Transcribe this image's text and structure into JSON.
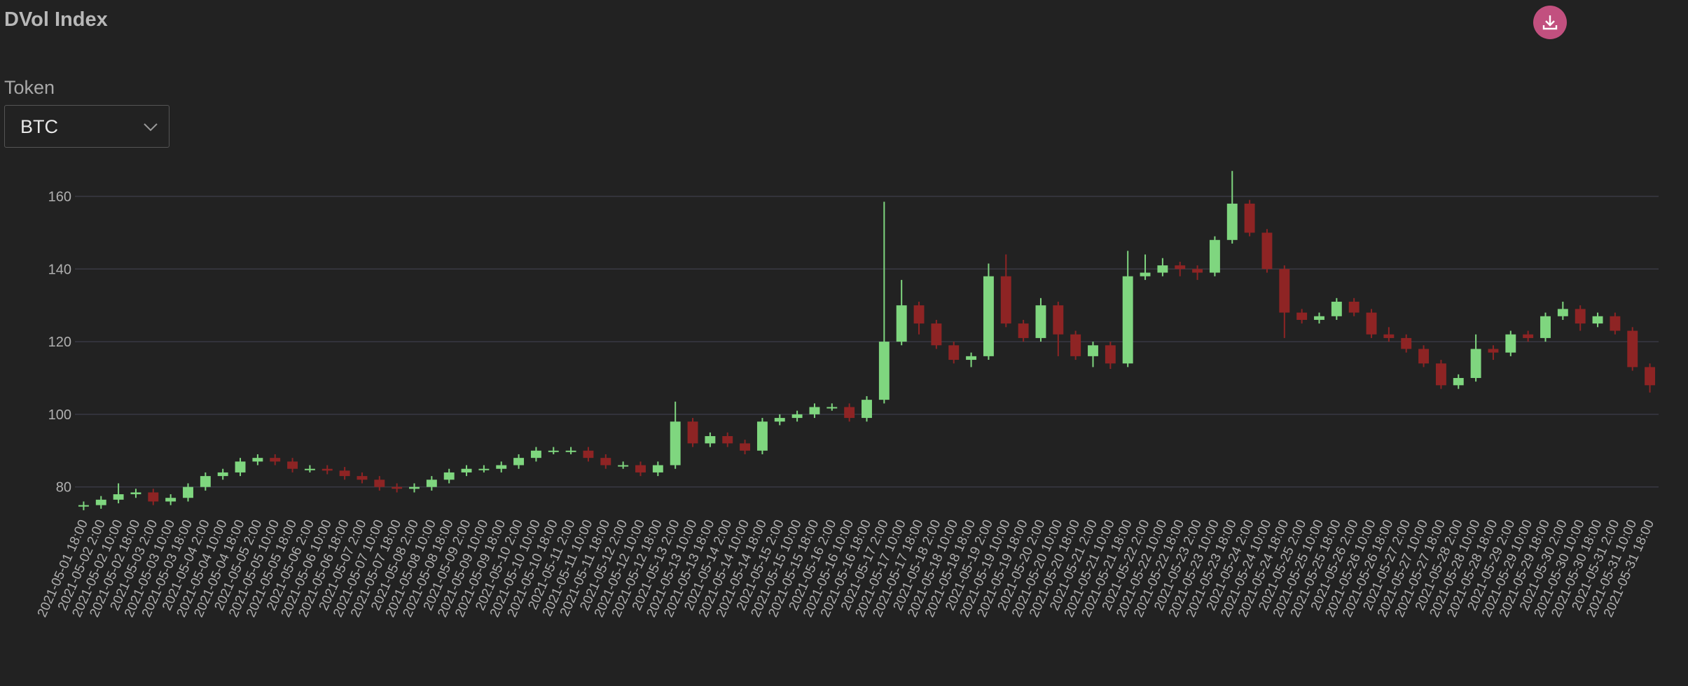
{
  "chart_data": {
    "type": "candlestick",
    "title": "DVol Index",
    "categories": [
      "2021-05-01 18:00",
      "2021-05-02 2:00",
      "2021-05-02 10:00",
      "2021-05-02 18:00",
      "2021-05-03 2:00",
      "2021-05-03 10:00",
      "2021-05-03 18:00",
      "2021-05-04 2:00",
      "2021-05-04 10:00",
      "2021-05-04 18:00",
      "2021-05-05 2:00",
      "2021-05-05 10:00",
      "2021-05-05 18:00",
      "2021-05-06 2:00",
      "2021-05-06 10:00",
      "2021-05-06 18:00",
      "2021-05-07 2:00",
      "2021-05-07 10:00",
      "2021-05-07 18:00",
      "2021-05-08 2:00",
      "2021-05-08 10:00",
      "2021-05-08 18:00",
      "2021-05-09 2:00",
      "2021-05-09 10:00",
      "2021-05-09 18:00",
      "2021-05-10 2:00",
      "2021-05-10 10:00",
      "2021-05-10 18:00",
      "2021-05-11 2:00",
      "2021-05-11 10:00",
      "2021-05-11 18:00",
      "2021-05-12 2:00",
      "2021-05-12 10:00",
      "2021-05-12 18:00",
      "2021-05-13 2:00",
      "2021-05-13 10:00",
      "2021-05-13 18:00",
      "2021-05-14 2:00",
      "2021-05-14 10:00",
      "2021-05-14 18:00",
      "2021-05-15 2:00",
      "2021-05-15 10:00",
      "2021-05-15 18:00",
      "2021-05-16 2:00",
      "2021-05-16 10:00",
      "2021-05-16 18:00",
      "2021-05-17 2:00",
      "2021-05-17 10:00",
      "2021-05-17 18:00",
      "2021-05-18 2:00",
      "2021-05-18 10:00",
      "2021-05-18 18:00",
      "2021-05-19 2:00",
      "2021-05-19 10:00",
      "2021-05-19 18:00",
      "2021-05-20 2:00",
      "2021-05-20 10:00",
      "2021-05-20 18:00",
      "2021-05-21 2:00",
      "2021-05-21 10:00",
      "2021-05-21 18:00",
      "2021-05-22 2:00",
      "2021-05-22 10:00",
      "2021-05-22 18:00",
      "2021-05-23 2:00",
      "2021-05-23 10:00",
      "2021-05-23 18:00",
      "2021-05-24 2:00",
      "2021-05-24 10:00",
      "2021-05-24 18:00",
      "2021-05-25 2:00",
      "2021-05-25 10:00",
      "2021-05-25 18:00",
      "2021-05-26 2:00",
      "2021-05-26 10:00",
      "2021-05-26 18:00",
      "2021-05-27 2:00",
      "2021-05-27 10:00",
      "2021-05-27 18:00",
      "2021-05-28 2:00",
      "2021-05-28 10:00",
      "2021-05-28 18:00",
      "2021-05-29 2:00",
      "2021-05-29 10:00",
      "2021-05-29 18:00",
      "2021-05-30 2:00",
      "2021-05-30 10:00",
      "2021-05-30 18:00",
      "2021-05-31 2:00",
      "2021-05-31 10:00",
      "2021-05-31 18:00"
    ],
    "open": [
      74.6,
      75,
      76.5,
      78,
      78.5,
      76,
      77,
      80,
      83,
      84,
      87,
      88,
      87,
      85,
      85,
      84.5,
      83,
      82,
      80,
      79.5,
      80,
      82,
      84,
      85,
      85,
      86,
      88,
      90,
      90,
      90,
      88,
      86,
      86,
      84,
      86,
      98,
      92,
      94,
      92,
      90,
      98,
      99,
      100,
      102,
      102,
      99,
      104,
      120,
      130,
      125,
      119,
      115,
      116,
      138,
      125,
      121,
      130,
      122,
      116,
      119,
      114,
      138,
      139,
      141,
      140,
      139,
      148,
      158,
      150,
      140,
      128,
      126,
      127,
      131,
      128,
      122,
      121,
      118,
      114,
      108,
      110,
      118,
      117,
      122,
      121,
      127,
      129,
      125,
      127,
      123,
      113
    ],
    "high": [
      76,
      77.5,
      81,
      79.5,
      79.5,
      78,
      81,
      84,
      85,
      88,
      89,
      89,
      88,
      86,
      86,
      85.5,
      84,
      83,
      81,
      81,
      83,
      85,
      86,
      86,
      87,
      89,
      91,
      91,
      91,
      91,
      89,
      87,
      87,
      87,
      103.5,
      99,
      95,
      95,
      93,
      99,
      100,
      101,
      103,
      103,
      103,
      105,
      158.5,
      137,
      131,
      126,
      120,
      117,
      141.5,
      144,
      126,
      132,
      131,
      123,
      120,
      120,
      145,
      144,
      143,
      142,
      141,
      149,
      167,
      159,
      151,
      141,
      129,
      128,
      132,
      132,
      129,
      124,
      122,
      119,
      115,
      111,
      122,
      119,
      123,
      123,
      128,
      131,
      130,
      128,
      128,
      124,
      114
    ],
    "low": [
      73.6,
      74,
      75.5,
      77,
      75,
      75,
      76,
      79,
      82,
      83,
      86,
      86,
      84,
      84,
      83.5,
      82,
      81,
      79,
      78.5,
      78.5,
      79,
      81,
      83,
      84,
      84,
      85,
      87,
      89,
      89,
      87,
      85,
      85,
      83,
      83,
      85,
      91,
      91,
      91,
      89,
      89,
      97,
      98,
      99,
      101,
      98,
      98,
      103,
      119,
      122,
      118,
      114,
      113,
      115,
      124,
      120,
      120,
      116,
      115,
      113,
      112.5,
      113,
      137,
      138,
      138,
      137,
      138,
      147,
      149,
      139,
      121,
      125,
      125,
      126,
      127,
      121,
      120,
      117,
      113,
      107,
      107,
      109,
      115,
      116,
      120,
      120,
      126,
      123,
      124,
      122,
      112,
      106
    ],
    "close": [
      75,
      76.5,
      78,
      78.5,
      76,
      77,
      80,
      83,
      84,
      87,
      88,
      87,
      85,
      85,
      84.5,
      83,
      82,
      80,
      79.5,
      80,
      82,
      84,
      85,
      85,
      86,
      88,
      90,
      90,
      90,
      88,
      86,
      86,
      84,
      86,
      98,
      92,
      94,
      92,
      90,
      98,
      99,
      100,
      102,
      102,
      99,
      104,
      120,
      130,
      125,
      119,
      115,
      116,
      138,
      125,
      121,
      130,
      122,
      116,
      119,
      114,
      138,
      139,
      141,
      140,
      139,
      148,
      158,
      150,
      140,
      128,
      126,
      127,
      131,
      128,
      122,
      121,
      118,
      114,
      108,
      110,
      118,
      117,
      122,
      121,
      127,
      129,
      125,
      127,
      123,
      113,
      108
    ],
    "up_color": "#7fd67f",
    "down_color": "#8e2424",
    "ylim": [
      73,
      168
    ],
    "yticks": [
      80,
      100,
      120,
      140,
      160
    ],
    "grid": true
  },
  "filter": {
    "label": "Token",
    "selected": "BTC"
  }
}
